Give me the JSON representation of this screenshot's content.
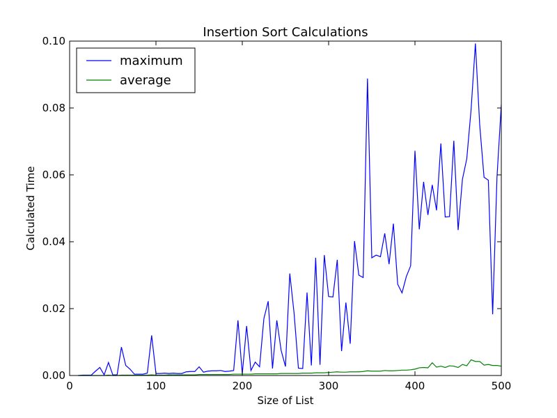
{
  "chart_data": {
    "type": "line",
    "title": "Insertion Sort Calculations",
    "xlabel": "Size of List",
    "ylabel": "Calculated Time",
    "xlim": [
      0,
      500
    ],
    "ylim": [
      0,
      0.1
    ],
    "grid": false,
    "legend_position": "top-left",
    "x_ticks": [
      0,
      100,
      200,
      300,
      400,
      500
    ],
    "x_tick_labels": [
      "0",
      "100",
      "200",
      "300",
      "400",
      "500"
    ],
    "y_ticks": [
      0,
      0.02,
      0.04,
      0.06,
      0.08,
      0.1
    ],
    "y_tick_labels": [
      "0.00",
      "0.02",
      "0.04",
      "0.06",
      "0.08",
      "0.10"
    ],
    "x": [
      10,
      15,
      20,
      25,
      30,
      35,
      40,
      45,
      50,
      55,
      60,
      65,
      70,
      75,
      80,
      85,
      90,
      95,
      100,
      105,
      110,
      115,
      120,
      125,
      130,
      135,
      140,
      145,
      150,
      155,
      160,
      165,
      170,
      175,
      180,
      185,
      190,
      195,
      200,
      205,
      210,
      215,
      220,
      225,
      230,
      235,
      240,
      245,
      250,
      255,
      260,
      265,
      270,
      275,
      280,
      285,
      290,
      295,
      300,
      305,
      310,
      315,
      320,
      325,
      330,
      335,
      340,
      345,
      350,
      355,
      360,
      365,
      370,
      375,
      380,
      385,
      390,
      395,
      400,
      405,
      410,
      415,
      420,
      425,
      430,
      435,
      440,
      445,
      450,
      455,
      460,
      465,
      470,
      475,
      480,
      485,
      490,
      495,
      500
    ],
    "series": [
      {
        "name": "maximum",
        "color": "#0000ff",
        "values": [
          0.0,
          0.0001,
          0.0001,
          0.0001,
          0.0013,
          0.0024,
          0.0002,
          0.0039,
          0.0002,
          0.0002,
          0.0085,
          0.003,
          0.0019,
          0.0004,
          0.0004,
          0.0004,
          0.0007,
          0.012,
          0.0006,
          0.0006,
          0.0007,
          0.0006,
          0.0007,
          0.0006,
          0.0006,
          0.0011,
          0.0012,
          0.0012,
          0.0026,
          0.001,
          0.0013,
          0.0014,
          0.0014,
          0.0015,
          0.0012,
          0.0013,
          0.0015,
          0.0165,
          0.0005,
          0.0148,
          0.0015,
          0.004,
          0.0026,
          0.017,
          0.0222,
          0.0021,
          0.0165,
          0.0075,
          0.0027,
          0.0305,
          0.0186,
          0.0022,
          0.0021,
          0.0248,
          0.003,
          0.0352,
          0.0032,
          0.036,
          0.0236,
          0.0235,
          0.0346,
          0.0073,
          0.0218,
          0.0095,
          0.0402,
          0.03,
          0.0293,
          0.0888,
          0.0352,
          0.036,
          0.0355,
          0.0425,
          0.0333,
          0.0454,
          0.0273,
          0.0247,
          0.0296,
          0.0328,
          0.0672,
          0.0437,
          0.0579,
          0.048,
          0.057,
          0.0494,
          0.0694,
          0.0474,
          0.0475,
          0.0702,
          0.0435,
          0.0587,
          0.0648,
          0.0795,
          0.0993,
          0.0749,
          0.0593,
          0.0584,
          0.0183,
          0.0593,
          0.081
        ]
      },
      {
        "name": "average",
        "color": "#008000",
        "values": [
          0.0,
          0.0,
          0.0,
          0.0,
          0.0,
          0.0,
          0.0,
          0.0001,
          0.0,
          0.0,
          0.0001,
          0.0001,
          0.0001,
          0.0001,
          0.0001,
          0.0001,
          0.0001,
          0.0002,
          0.0001,
          0.0001,
          0.0001,
          0.0002,
          0.0002,
          0.0002,
          0.0002,
          0.0002,
          0.0002,
          0.0002,
          0.0003,
          0.0003,
          0.0003,
          0.0003,
          0.0003,
          0.0003,
          0.0003,
          0.0003,
          0.0004,
          0.0004,
          0.0004,
          0.0004,
          0.0004,
          0.0005,
          0.0005,
          0.0005,
          0.0005,
          0.0005,
          0.0005,
          0.0006,
          0.0006,
          0.0006,
          0.0006,
          0.0006,
          0.0007,
          0.0007,
          0.0007,
          0.0008,
          0.0008,
          0.0008,
          0.0009,
          0.001,
          0.0011,
          0.001,
          0.001,
          0.0011,
          0.0011,
          0.0011,
          0.0012,
          0.0014,
          0.0013,
          0.0013,
          0.0013,
          0.0015,
          0.0014,
          0.0014,
          0.0015,
          0.0016,
          0.0016,
          0.0017,
          0.0019,
          0.0023,
          0.0024,
          0.0023,
          0.0038,
          0.0025,
          0.0028,
          0.0024,
          0.0029,
          0.0028,
          0.0024,
          0.0033,
          0.0029,
          0.0047,
          0.0042,
          0.0042,
          0.0031,
          0.0033,
          0.003,
          0.003,
          0.0028
        ]
      }
    ]
  }
}
